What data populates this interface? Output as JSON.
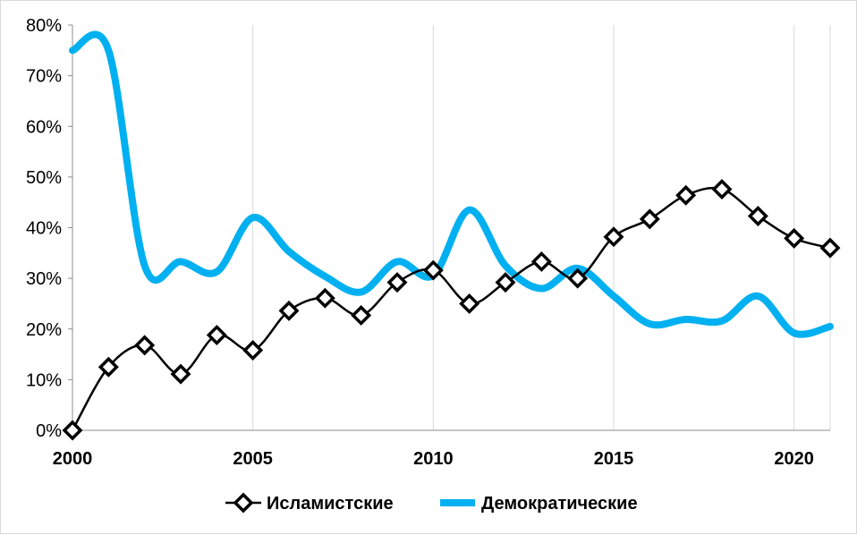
{
  "chart_data": {
    "type": "line",
    "title": "",
    "xlabel": "",
    "ylabel": "",
    "x": [
      2000,
      2001,
      2002,
      2003,
      2004,
      2005,
      2006,
      2007,
      2008,
      2009,
      2010,
      2011,
      2012,
      2013,
      2014,
      2015,
      2016,
      2017,
      2018,
      2019,
      2020,
      2021
    ],
    "xlim": [
      2000,
      2021
    ],
    "ylim": [
      0,
      80
    ],
    "x_ticks": [
      "2000",
      "2005",
      "2010",
      "2015",
      "2020"
    ],
    "y_ticks": [
      "0%",
      "10%",
      "20%",
      "30%",
      "40%",
      "50%",
      "60%",
      "70%",
      "80%"
    ],
    "grid": "vertical",
    "legend_position": "bottom",
    "series": [
      {
        "name": "Исламистские",
        "color": "#000000",
        "marker": "diamond",
        "values": [
          0,
          12.5,
          16.8,
          11.1,
          18.8,
          15.8,
          23.6,
          26.1,
          22.7,
          29.2,
          31.6,
          25.0,
          29.2,
          33.3,
          30.0,
          38.2,
          41.7,
          46.4,
          47.6,
          42.3,
          37.9,
          36.0
        ]
      },
      {
        "name": "Демократические",
        "color": "#00b0f0",
        "marker": "none",
        "values": [
          75.0,
          75.0,
          32.5,
          33.3,
          31.3,
          42.0,
          35.3,
          30.4,
          27.3,
          33.3,
          30.6,
          43.5,
          32.5,
          28.0,
          32.0,
          26.5,
          21.0,
          21.9,
          21.6,
          26.5,
          19.2,
          20.5
        ]
      }
    ]
  }
}
